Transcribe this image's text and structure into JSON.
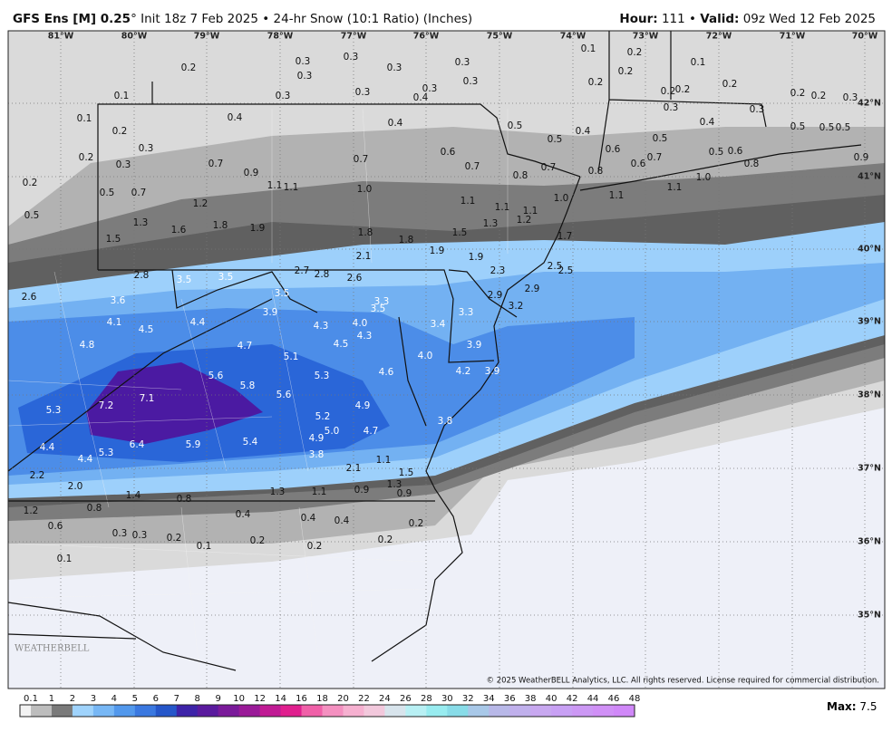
{
  "header": {
    "model": "GFS Ens [M] 0.25",
    "description": "° Init 18z 7 Feb 2025 • 24-hr Snow (10:1 Ratio) (Inches)",
    "hour_label": "Hour:",
    "hour": " 111 • ",
    "valid_label": "Valid:",
    "valid": " 09z Wed 12 Feb 2025"
  },
  "longitudes": [
    "81°W",
    "80°W",
    "79°W",
    "78°W",
    "77°W",
    "76°W",
    "75°W",
    "74°W",
    "73°W",
    "72°W",
    "71°W",
    "70°W"
  ],
  "latitudes": [
    "42°N",
    "41°N",
    "40°N",
    "39°N",
    "38°N",
    "37°N",
    "36°N",
    "35°N"
  ],
  "labels": [
    "0.2",
    "0.3",
    "0.3",
    "0.3",
    "0.3",
    "0.3",
    "0.3",
    "0.3",
    "0.4",
    "0.3",
    "0.3",
    "0.1",
    "0.2",
    "0.2",
    "0.1",
    "0.2",
    "0.2",
    "0.2",
    "0.2",
    "0.3",
    "0.4",
    "0.3",
    "0.2",
    "0.2",
    "0.3",
    "0.1",
    "0.1",
    "0.2",
    "0.3",
    "0.2",
    "0.3",
    "0.2",
    "0.5",
    "0.4",
    "0.4",
    "0.5",
    "0.4",
    "0.5",
    "0.5",
    "0.6",
    "0.7",
    "0.6",
    "0.5",
    "0.6",
    "0.8",
    "0.8",
    "0.5",
    "0.5",
    "0.5",
    "0.9",
    "0.7",
    "0.9",
    "0.7",
    "0.6",
    "0.7",
    "0.7",
    "0.8",
    "0.5",
    "0.7",
    "1.1",
    "1.1",
    "1.0",
    "1.2",
    "1.1",
    "1.1",
    "1.1",
    "1.0",
    "1.1",
    "1.1",
    "1.0",
    "1.3",
    "1.6",
    "1.8",
    "1.9",
    "1.8",
    "1.8",
    "1.5",
    "1.3",
    "1.2",
    "1.7",
    "1.5",
    "2.1",
    "1.9",
    "1.9",
    "2.3",
    "2.5",
    "2.5",
    "2.8",
    "3.5",
    "3.5",
    "2.7",
    "2.8",
    "2.6",
    "3.5",
    "2.6",
    "3.6",
    "3.9",
    "3.3",
    "3.5",
    "2.9",
    "2.9",
    "3.2",
    "3.3",
    "4.1",
    "4.5",
    "4.4",
    "4.3",
    "4.0",
    "4.3",
    "4.5",
    "3.4",
    "4.8",
    "4.7",
    "5.1",
    "4.0",
    "3.9",
    "4.6",
    "4.2",
    "3.9",
    "5.6",
    "5.8",
    "5.3",
    "5.6",
    "4.9",
    "7.2",
    "7.1",
    "5.3",
    "5.2",
    "5.0",
    "4.7",
    "4.9",
    "3.8",
    "6.4",
    "5.9",
    "5.4",
    "4.4",
    "5.3",
    "4.4",
    "3.8",
    "2.1",
    "1.1",
    "1.5",
    "2.2",
    "2.0",
    "1.4",
    "0.8",
    "1.3",
    "1.1",
    "0.9",
    "1.3",
    "0.9",
    "1.2",
    "0.8",
    "0.6",
    "0.4",
    "0.4",
    "0.4",
    "0.2",
    "0.3",
    "0.3",
    "0.2",
    "0.1",
    "0.2",
    "0.2",
    "0.2",
    "0.1"
  ],
  "colorbar": {
    "ticks": [
      "0.1",
      "1",
      "2",
      "3",
      "4",
      "5",
      "6",
      "7",
      "8",
      "9",
      "10",
      "12",
      "14",
      "16",
      "18",
      "20",
      "22",
      "24",
      "26",
      "28",
      "30",
      "32",
      "34",
      "36",
      "38",
      "40",
      "42",
      "44",
      "46",
      "48"
    ],
    "colors": [
      "#bdbdbd",
      "#7a7a7a",
      "#9fd3fc",
      "#77b7f5",
      "#5298ec",
      "#3a78e0",
      "#2556c9",
      "#3d23a8",
      "#5a1a9e",
      "#7a1a9a",
      "#9a1a98",
      "#c01a94",
      "#e01f8e",
      "#f060a8",
      "#f490c0",
      "#f6b0d0",
      "#f2c8dc",
      "#d8e4ec",
      "#b8f0f4",
      "#98ecf0",
      "#88dce8",
      "#a8c8e8",
      "#b8b8e8",
      "#c0b0ec",
      "#c8a8f0",
      "#c8a0f4",
      "#cc98f4",
      "#d090f6",
      "#d088f8"
    ]
  },
  "max_label": "Max:",
  "max_value": " 7.5",
  "copyright": "© 2025 WeatherBELL Analytics, LLC. All rights reserved. License required for commercial distribution.",
  "logo": "WEATHERBELL"
}
